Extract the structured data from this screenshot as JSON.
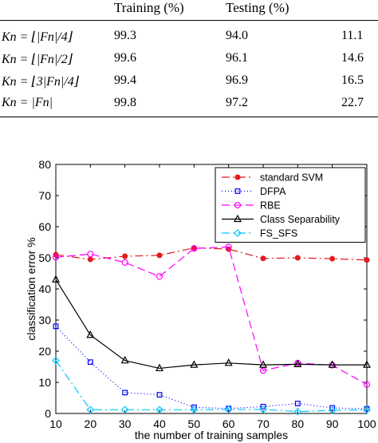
{
  "table": {
    "headers": [
      "Training (%)",
      "Testing (%)"
    ],
    "rows": [
      {
        "label": "Kn = ⌊|Fn|/4⌋",
        "training": "99.3",
        "testing": "94.0",
        "third": "11.1"
      },
      {
        "label": "Kn = ⌊|Fn|/2⌋",
        "training": "99.6",
        "testing": "96.1",
        "third": "14.6"
      },
      {
        "label": "Kn = ⌊3|Fn|/4⌋",
        "training": "99.4",
        "testing": "96.9",
        "third": "16.5"
      },
      {
        "label": "Kn = |Fn|",
        "training": "99.8",
        "testing": "97.2",
        "third": "22.7"
      }
    ]
  },
  "chart_data": {
    "type": "line",
    "xlabel": "the number of training samples",
    "ylabel": "classification error %",
    "xlim": [
      10,
      100
    ],
    "ylim": [
      0,
      80
    ],
    "x_ticks": [
      "10",
      "20",
      "30",
      "40",
      "50",
      "60",
      "70",
      "80",
      "90",
      "100"
    ],
    "y_ticks": [
      "0",
      "10",
      "20",
      "30",
      "40",
      "50",
      "60",
      "70",
      "80"
    ],
    "grid": false,
    "legend_position": "top-right",
    "x": [
      10,
      20,
      30,
      40,
      50,
      60,
      70,
      80,
      90,
      100
    ],
    "series": [
      {
        "name": "standard SVM",
        "color": "#e31a1c",
        "dash": "10,4,2,4",
        "marker": "dot",
        "values": [
          51.0,
          49.5,
          50.5,
          50.8,
          53.2,
          52.8,
          49.8,
          50.0,
          49.7,
          49.3
        ]
      },
      {
        "name": "DFPA",
        "color": "#0000ff",
        "dash": "1,3",
        "marker": "square",
        "values": [
          28.0,
          16.5,
          6.7,
          6.0,
          2.0,
          1.6,
          2.2,
          3.2,
          1.8,
          1.5
        ]
      },
      {
        "name": "RBE",
        "color": "#ff00ff",
        "dash": "10,5",
        "marker": "circle",
        "values": [
          50.2,
          51.2,
          48.5,
          44.0,
          53.0,
          53.5,
          13.8,
          16.2,
          15.5,
          9.3
        ]
      },
      {
        "name": "Class Separability",
        "color": "#000000",
        "dash": "",
        "marker": "triangle",
        "values": [
          43.0,
          25.2,
          17.0,
          14.5,
          15.6,
          16.2,
          15.6,
          15.8,
          15.6,
          15.6
        ]
      },
      {
        "name": "FS_SFS",
        "color": "#00c8ff",
        "dash": "10,4,2,4",
        "marker": "diamond",
        "values": [
          17.0,
          1.2,
          1.2,
          1.2,
          1.2,
          1.3,
          1.3,
          0.6,
          1.0,
          1.2
        ]
      }
    ]
  }
}
